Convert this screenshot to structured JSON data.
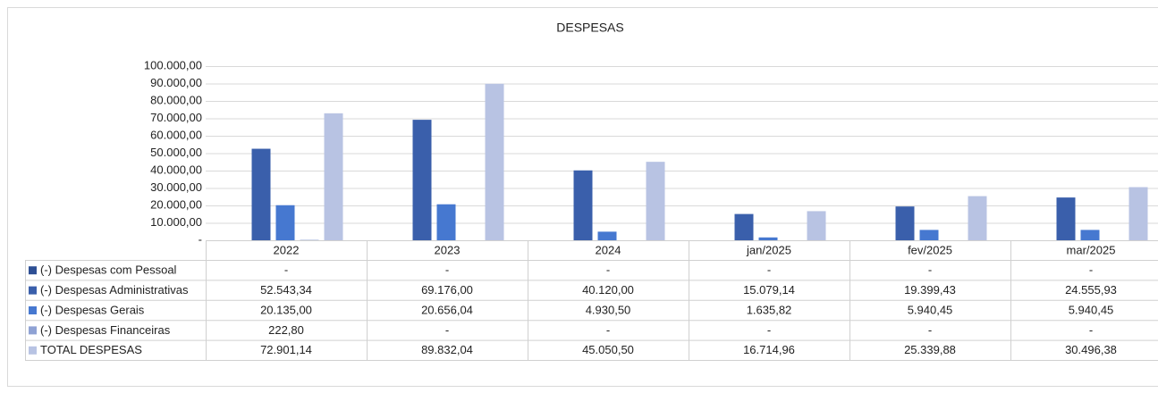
{
  "chart_data": {
    "type": "bar",
    "title": "DESPESAS",
    "categories": [
      "2022",
      "2023",
      "2024",
      "jan/2025",
      "fev/2025",
      "mar/2025"
    ],
    "series": [
      {
        "name": "(-) Despesas com Pessoal",
        "color": "#2e4f94",
        "values": [
          0,
          0,
          0,
          0,
          0,
          0
        ],
        "value_labels": [
          "-",
          "-",
          "-",
          "-",
          "-",
          "-"
        ]
      },
      {
        "name": "(-) Despesas Administrativas",
        "color": "#3a5fab",
        "values": [
          52543.34,
          69176.0,
          40120.0,
          15079.14,
          19399.43,
          24555.93
        ],
        "value_labels": [
          "52.543,34",
          "69.176,00",
          "40.120,00",
          "15.079,14",
          "19.399,43",
          "24.555,93"
        ]
      },
      {
        "name": "(-) Despesas Gerais",
        "color": "#4678d0",
        "values": [
          20135.0,
          20656.04,
          4930.5,
          1635.82,
          5940.45,
          5940.45
        ],
        "value_labels": [
          "20.135,00",
          "20.656,04",
          "4.930,50",
          "1.635,82",
          "5.940,45",
          "5.940,45"
        ]
      },
      {
        "name": "(-) Despesas Financeiras",
        "color": "#8fa2d4",
        "values": [
          222.8,
          0,
          0,
          0,
          0,
          0
        ],
        "value_labels": [
          "222,80",
          "-",
          "-",
          "-",
          "-",
          "-"
        ]
      },
      {
        "name": "TOTAL DESPESAS",
        "color": "#b8c3e3",
        "values": [
          72901.14,
          89832.04,
          45050.5,
          16714.96,
          25339.88,
          30496.38
        ],
        "value_labels": [
          "72.901,14",
          "89.832,04",
          "45.050,50",
          "16.714,96",
          "25.339,88",
          "30.496,38"
        ]
      }
    ],
    "ylim": [
      0,
      100000
    ],
    "yticks": [
      {
        "value": 0,
        "label": "-"
      },
      {
        "value": 10000,
        "label": "10.000,00"
      },
      {
        "value": 20000,
        "label": "20.000,00"
      },
      {
        "value": 30000,
        "label": "30.000,00"
      },
      {
        "value": 40000,
        "label": "40.000,00"
      },
      {
        "value": 50000,
        "label": "50.000,00"
      },
      {
        "value": 60000,
        "label": "60.000,00"
      },
      {
        "value": 70000,
        "label": "70.000,00"
      },
      {
        "value": 80000,
        "label": "80.000,00"
      },
      {
        "value": 90000,
        "label": "90.000,00"
      },
      {
        "value": 100000,
        "label": "100.000,00"
      }
    ],
    "grid": true
  }
}
